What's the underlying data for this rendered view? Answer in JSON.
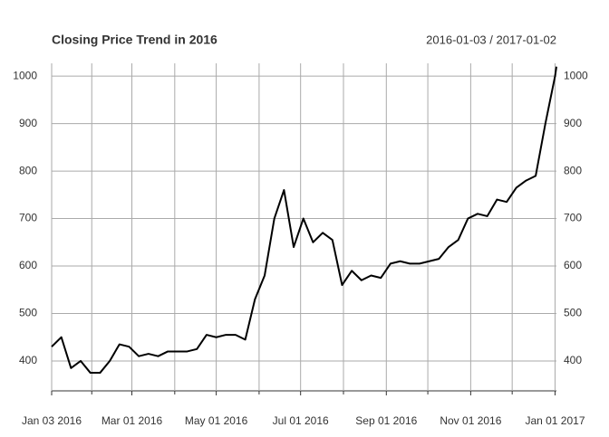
{
  "chart_data": {
    "type": "line",
    "title": "Closing Price Trend in 2016",
    "subtitle": "2016-01-03 / 2017-01-02",
    "x": [
      "2016-01-03",
      "2016-01-10",
      "2016-01-17",
      "2016-01-24",
      "2016-01-31",
      "2016-02-07",
      "2016-02-14",
      "2016-02-21",
      "2016-02-28",
      "2016-03-06",
      "2016-03-13",
      "2016-03-20",
      "2016-03-27",
      "2016-04-03",
      "2016-04-10",
      "2016-04-17",
      "2016-04-24",
      "2016-05-01",
      "2016-05-08",
      "2016-05-15",
      "2016-05-22",
      "2016-05-29",
      "2016-06-05",
      "2016-06-12",
      "2016-06-19",
      "2016-06-26",
      "2016-07-03",
      "2016-07-10",
      "2016-07-17",
      "2016-07-24",
      "2016-07-31",
      "2016-08-07",
      "2016-08-14",
      "2016-08-21",
      "2016-08-28",
      "2016-09-04",
      "2016-09-11",
      "2016-09-18",
      "2016-09-25",
      "2016-10-02",
      "2016-10-09",
      "2016-10-16",
      "2016-10-23",
      "2016-10-30",
      "2016-11-06",
      "2016-11-13",
      "2016-11-20",
      "2016-11-27",
      "2016-12-04",
      "2016-12-11",
      "2016-12-18",
      "2016-12-25",
      "2017-01-01",
      "2017-01-02"
    ],
    "series": [
      {
        "name": "Close",
        "color": "#000000",
        "values": [
          430,
          450,
          385,
          400,
          375,
          375,
          400,
          435,
          430,
          410,
          415,
          410,
          420,
          420,
          420,
          425,
          455,
          450,
          455,
          455,
          445,
          530,
          580,
          700,
          760,
          640,
          700,
          650,
          670,
          655,
          560,
          590,
          570,
          580,
          575,
          605,
          610,
          605,
          605,
          610,
          615,
          640,
          655,
          700,
          710,
          705,
          740,
          735,
          765,
          780,
          790,
          900,
          1000,
          1020
        ]
      }
    ],
    "xlim": [
      "2016-01-03",
      "2017-01-02"
    ],
    "xticks": [
      {
        "value": "2016-01-03",
        "label": "Jan 03 2016"
      },
      {
        "value": "2016-03-01",
        "label": "Mar 01 2016"
      },
      {
        "value": "2016-05-01",
        "label": "May 01 2016"
      },
      {
        "value": "2016-07-01",
        "label": "Jul 01 2016"
      },
      {
        "value": "2016-09-01",
        "label": "Sep 01 2016"
      },
      {
        "value": "2016-11-01",
        "label": "Nov 01 2016"
      },
      {
        "value": "2017-01-01",
        "label": "Jan 01 2017"
      }
    ],
    "x_minor_ticks": [
      "2016-02-01",
      "2016-04-01",
      "2016-06-01",
      "2016-08-01",
      "2016-10-01",
      "2016-12-01"
    ],
    "ylim": [
      337,
      1027
    ],
    "yticks": [
      400,
      500,
      600,
      700,
      800,
      900,
      1000
    ],
    "grid": true
  }
}
